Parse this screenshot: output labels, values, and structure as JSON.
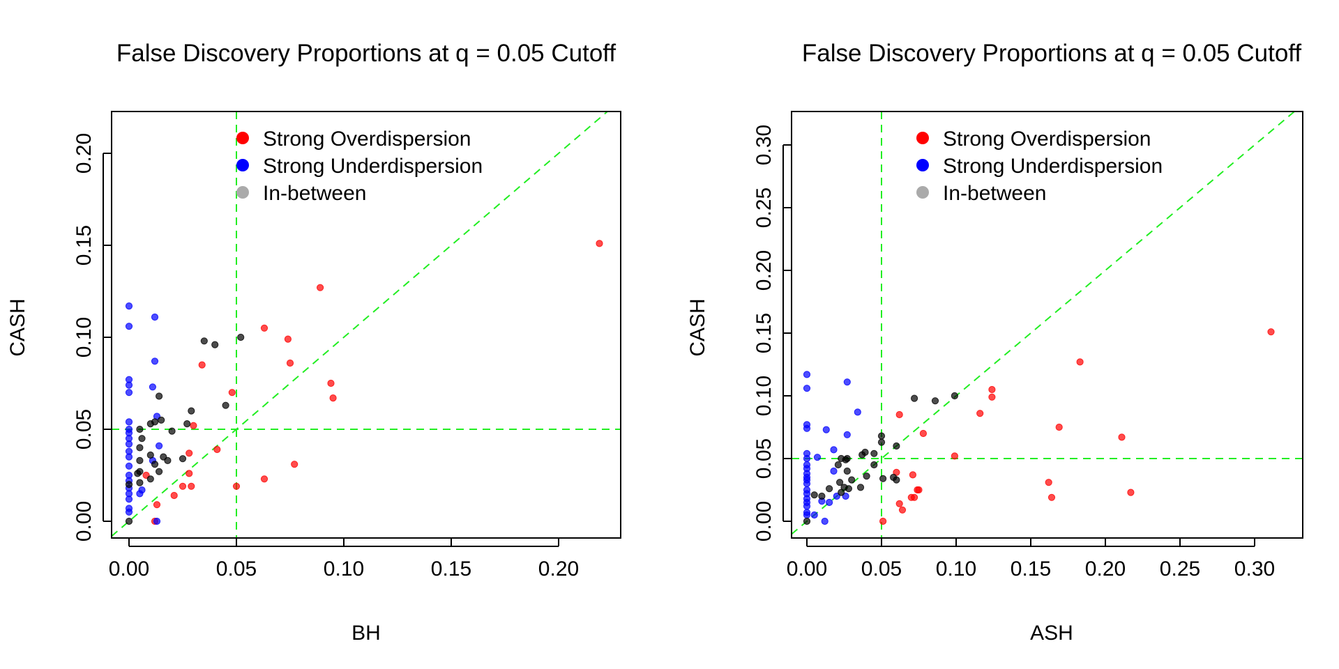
{
  "colors": {
    "strong_over": "#ff0000",
    "strong_under": "#0000ff",
    "in_between": "#000000",
    "legend_in_between": "#aaaaaa",
    "reference_lines": "#22ee22"
  },
  "chart_data": [
    {
      "type": "scatter",
      "title": "False Discovery Proportions at q = 0.05 Cutoff",
      "xlabel": "BH",
      "ylabel": "CASH",
      "xlim": [
        0,
        0.22
      ],
      "ylim": [
        0,
        0.22
      ],
      "xticks": [
        "0.00",
        "0.05",
        "0.10",
        "0.15",
        "0.20"
      ],
      "yticks": [
        "0.00",
        "0.05",
        "0.10",
        "0.15",
        "0.20"
      ],
      "grid": false,
      "legend_position": "top",
      "reference_lines": {
        "vertical": 0.05,
        "horizontal": 0.05,
        "diagonal": "y = x"
      },
      "series": [
        {
          "name": "Strong Overdispersion",
          "color_key": "strong_over",
          "points": [
            [
              0.219,
              0.151
            ],
            [
              0.089,
              0.127
            ],
            [
              0.063,
              0.105
            ],
            [
              0.074,
              0.099
            ],
            [
              0.075,
              0.086
            ],
            [
              0.034,
              0.085
            ],
            [
              0.094,
              0.075
            ],
            [
              0.048,
              0.07
            ],
            [
              0.095,
              0.067
            ],
            [
              0.03,
              0.052
            ],
            [
              0.041,
              0.039
            ],
            [
              0.077,
              0.031
            ],
            [
              0.028,
              0.037
            ],
            [
              0.028,
              0.026
            ],
            [
              0.008,
              0.025
            ],
            [
              0.063,
              0.023
            ],
            [
              0.025,
              0.019
            ],
            [
              0.029,
              0.019
            ],
            [
              0.05,
              0.019
            ],
            [
              0.021,
              0.014
            ],
            [
              0.013,
              0.009
            ],
            [
              0.012,
              0.0
            ]
          ]
        },
        {
          "name": "Strong Underdispersion",
          "color_key": "strong_under",
          "points": [
            [
              0.0,
              0.117
            ],
            [
              0.0,
              0.106
            ],
            [
              0.012,
              0.111
            ],
            [
              0.012,
              0.087
            ],
            [
              0.0,
              0.077
            ],
            [
              0.0,
              0.074
            ],
            [
              0.0,
              0.07
            ],
            [
              0.011,
              0.073
            ],
            [
              0.013,
              0.057
            ],
            [
              0.0,
              0.054
            ],
            [
              0.0,
              0.05
            ],
            [
              0.0,
              0.048
            ],
            [
              0.0,
              0.045
            ],
            [
              0.0,
              0.042
            ],
            [
              0.0,
              0.038
            ],
            [
              0.011,
              0.033
            ],
            [
              0.014,
              0.041
            ],
            [
              0.0,
              0.035
            ],
            [
              0.0,
              0.03
            ],
            [
              0.0,
              0.025
            ],
            [
              0.0,
              0.022
            ],
            [
              0.0,
              0.018
            ],
            [
              0.0,
              0.015
            ],
            [
              0.0,
              0.012
            ],
            [
              0.0,
              0.007
            ],
            [
              0.0,
              0.005
            ],
            [
              0.005,
              0.015
            ],
            [
              0.006,
              0.017
            ],
            [
              0.013,
              0.0
            ]
          ]
        },
        {
          "name": "In-between",
          "color_key": "in_between",
          "points": [
            [
              0.035,
              0.098
            ],
            [
              0.04,
              0.096
            ],
            [
              0.052,
              0.1
            ],
            [
              0.014,
              0.068
            ],
            [
              0.045,
              0.063
            ],
            [
              0.029,
              0.06
            ],
            [
              0.012,
              0.054
            ],
            [
              0.027,
              0.053
            ],
            [
              0.015,
              0.055
            ],
            [
              0.005,
              0.05
            ],
            [
              0.01,
              0.053
            ],
            [
              0.02,
              0.049
            ],
            [
              0.006,
              0.045
            ],
            [
              0.005,
              0.04
            ],
            [
              0.01,
              0.036
            ],
            [
              0.016,
              0.035
            ],
            [
              0.018,
              0.033
            ],
            [
              0.025,
              0.034
            ],
            [
              0.005,
              0.033
            ],
            [
              0.012,
              0.031
            ],
            [
              0.014,
              0.027
            ],
            [
              0.005,
              0.027
            ],
            [
              0.004,
              0.026
            ],
            [
              0.01,
              0.023
            ],
            [
              0.005,
              0.021
            ],
            [
              0.0,
              0.02
            ],
            [
              0.0,
              0.0
            ]
          ]
        }
      ]
    },
    {
      "type": "scatter",
      "title": "False Discovery Proportions at q = 0.05 Cutoff",
      "xlabel": "ASH",
      "ylabel": "CASH",
      "xlim": [
        0,
        0.31
      ],
      "ylim": [
        0,
        0.31
      ],
      "xticks": [
        "0.00",
        "0.05",
        "0.10",
        "0.15",
        "0.20",
        "0.25",
        "0.30"
      ],
      "yticks": [
        "0.00",
        "0.05",
        "0.10",
        "0.15",
        "0.20",
        "0.25",
        "0.30"
      ],
      "grid": false,
      "legend_position": "top",
      "reference_lines": {
        "vertical": 0.05,
        "horizontal": 0.05,
        "diagonal": "y = x"
      },
      "series": [
        {
          "name": "Strong Overdispersion",
          "color_key": "strong_over",
          "points": [
            [
              0.311,
              0.151
            ],
            [
              0.183,
              0.127
            ],
            [
              0.124,
              0.105
            ],
            [
              0.124,
              0.099
            ],
            [
              0.116,
              0.086
            ],
            [
              0.062,
              0.085
            ],
            [
              0.169,
              0.075
            ],
            [
              0.078,
              0.07
            ],
            [
              0.211,
              0.067
            ],
            [
              0.099,
              0.052
            ],
            [
              0.06,
              0.039
            ],
            [
              0.071,
              0.037
            ],
            [
              0.162,
              0.031
            ],
            [
              0.217,
              0.023
            ],
            [
              0.075,
              0.025
            ],
            [
              0.074,
              0.025
            ],
            [
              0.164,
              0.019
            ],
            [
              0.07,
              0.019
            ],
            [
              0.072,
              0.019
            ],
            [
              0.062,
              0.014
            ],
            [
              0.064,
              0.009
            ],
            [
              0.051,
              0.0
            ]
          ]
        },
        {
          "name": "Strong Underdispersion",
          "color_key": "strong_under",
          "points": [
            [
              0.0,
              0.117
            ],
            [
              0.0,
              0.106
            ],
            [
              0.027,
              0.111
            ],
            [
              0.034,
              0.087
            ],
            [
              0.0,
              0.077
            ],
            [
              0.0,
              0.074
            ],
            [
              0.013,
              0.073
            ],
            [
              0.007,
              0.051
            ],
            [
              0.018,
              0.057
            ],
            [
              0.0,
              0.054
            ],
            [
              0.0,
              0.05
            ],
            [
              0.0,
              0.045
            ],
            [
              0.0,
              0.042
            ],
            [
              0.0,
              0.038
            ],
            [
              0.0,
              0.033
            ],
            [
              0.018,
              0.04
            ],
            [
              0.027,
              0.069
            ],
            [
              0.0,
              0.035
            ],
            [
              0.0,
              0.03
            ],
            [
              0.0,
              0.025
            ],
            [
              0.0,
              0.022
            ],
            [
              0.0,
              0.018
            ],
            [
              0.0,
              0.015
            ],
            [
              0.0,
              0.012
            ],
            [
              0.0,
              0.007
            ],
            [
              0.0,
              0.005
            ],
            [
              0.01,
              0.016
            ],
            [
              0.015,
              0.015
            ],
            [
              0.012,
              0.0
            ],
            [
              0.02,
              0.02
            ],
            [
              0.026,
              0.02
            ],
            [
              0.005,
              0.005
            ]
          ]
        },
        {
          "name": "In-between",
          "color_key": "in_between",
          "points": [
            [
              0.072,
              0.098
            ],
            [
              0.086,
              0.096
            ],
            [
              0.099,
              0.1
            ],
            [
              0.05,
              0.068
            ],
            [
              0.05,
              0.063
            ],
            [
              0.06,
              0.06
            ],
            [
              0.045,
              0.054
            ],
            [
              0.037,
              0.053
            ],
            [
              0.039,
              0.055
            ],
            [
              0.027,
              0.05
            ],
            [
              0.023,
              0.05
            ],
            [
              0.026,
              0.049
            ],
            [
              0.021,
              0.045
            ],
            [
              0.027,
              0.04
            ],
            [
              0.04,
              0.036
            ],
            [
              0.058,
              0.035
            ],
            [
              0.06,
              0.033
            ],
            [
              0.051,
              0.034
            ],
            [
              0.03,
              0.033
            ],
            [
              0.022,
              0.031
            ],
            [
              0.025,
              0.027
            ],
            [
              0.036,
              0.027
            ],
            [
              0.015,
              0.026
            ],
            [
              0.023,
              0.023
            ],
            [
              0.005,
              0.021
            ],
            [
              0.01,
              0.02
            ],
            [
              0.0,
              0.0
            ],
            [
              0.028,
              0.026
            ],
            [
              0.045,
              0.045
            ]
          ]
        }
      ]
    }
  ]
}
